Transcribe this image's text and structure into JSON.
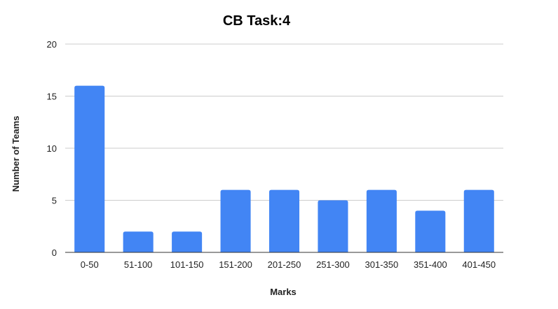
{
  "chart_data": {
    "type": "bar",
    "title": "CB Task:4",
    "xlabel": "Marks",
    "ylabel": "Number of Teams",
    "categories": [
      "0-50",
      "51-100",
      "101-150",
      "151-200",
      "201-250",
      "251-300",
      "301-350",
      "351-400",
      "401-450"
    ],
    "values": [
      16,
      2,
      2,
      6,
      6,
      5,
      6,
      4,
      6
    ],
    "ylim": [
      0,
      20
    ],
    "yticks": [
      0,
      5,
      10,
      15,
      20
    ],
    "grid": true,
    "legend": "none",
    "colors": {
      "bar": "#4285f4",
      "grid": "#cccccc",
      "axis": "#333333"
    }
  }
}
